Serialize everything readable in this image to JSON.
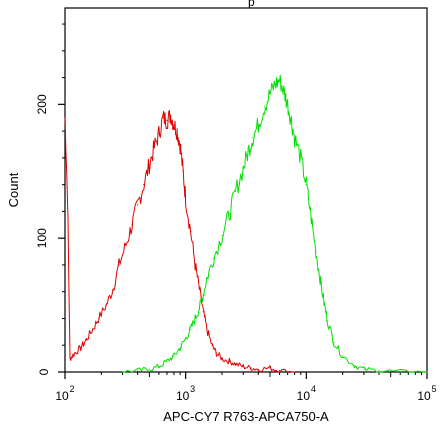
{
  "chart_data": {
    "type": "line",
    "title_fragment": "p",
    "xlabel": "APC-CY7 R763-APCA750-A",
    "ylabel": "Count",
    "x_scale": "log",
    "xlim": [
      100,
      100000
    ],
    "ylim": [
      0,
      272
    ],
    "grid": false,
    "x_ticks": [
      {
        "value": 100,
        "base": "10",
        "exp": "2"
      },
      {
        "value": 1000,
        "base": "10",
        "exp": "3"
      },
      {
        "value": 10000,
        "base": "10",
        "exp": "4"
      },
      {
        "value": 100000,
        "base": "10",
        "exp": "5"
      }
    ],
    "y_ticks": [
      {
        "value": 0,
        "label": "0"
      },
      {
        "value": 100,
        "label": "100"
      },
      {
        "value": 200,
        "label": "200"
      }
    ],
    "series": [
      {
        "color": "#e00000",
        "x": [
          100,
          105,
          110,
          120,
          135,
          150,
          170,
          190,
          220,
          250,
          280,
          320,
          360,
          400,
          450,
          500,
          550,
          600,
          650,
          700,
          750,
          800,
          850,
          900,
          950,
          1000,
          1100,
          1200,
          1300,
          1400,
          1500,
          1650,
          1800,
          2000,
          2300,
          2600,
          3000,
          3500,
          4000,
          5000,
          6000,
          8000
        ],
        "y": [
          190,
          130,
          10,
          14,
          18,
          24,
          32,
          40,
          50,
          62,
          80,
          95,
          110,
          125,
          140,
          155,
          168,
          178,
          190,
          188,
          192,
          185,
          180,
          170,
          150,
          130,
          105,
          80,
          62,
          45,
          32,
          20,
          14,
          10,
          8,
          6,
          4,
          3,
          2,
          3,
          1,
          0
        ]
      },
      {
        "color": "#00e000",
        "x": [
          300,
          400,
          500,
          600,
          700,
          800,
          900,
          1000,
          1100,
          1200,
          1300,
          1400,
          1500,
          1700,
          2000,
          2300,
          2600,
          3000,
          3300,
          3600,
          4000,
          4500,
          5000,
          5500,
          6000,
          6500,
          7000,
          7500,
          8000,
          9000,
          10000,
          11000,
          12000,
          13000,
          14000,
          15000,
          17000,
          20000,
          25000,
          30000,
          40000,
          60000,
          100000
        ],
        "y": [
          0,
          1,
          2,
          4,
          8,
          12,
          18,
          25,
          32,
          40,
          48,
          58,
          70,
          85,
          102,
          118,
          135,
          152,
          165,
          175,
          185,
          198,
          208,
          215,
          218,
          210,
          200,
          188,
          175,
          160,
          140,
          115,
          90,
          70,
          52,
          38,
          22,
          12,
          5,
          2,
          1,
          0,
          0
        ]
      }
    ]
  }
}
